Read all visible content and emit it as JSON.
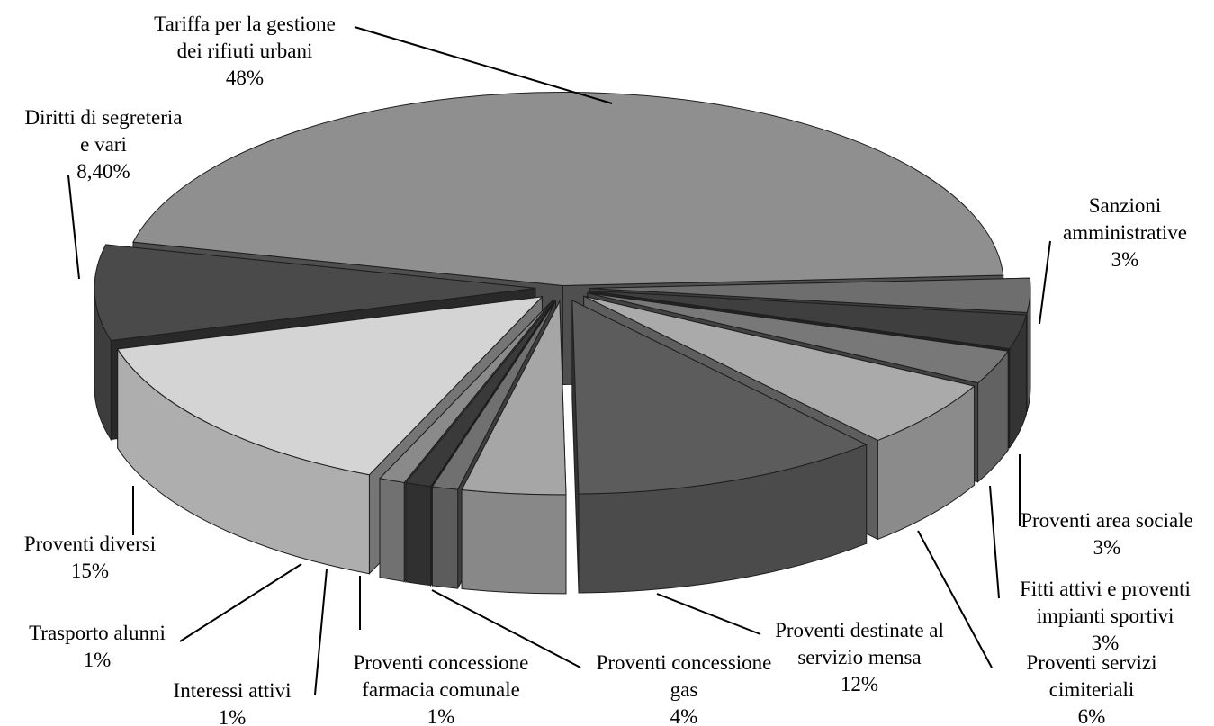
{
  "chart_data": {
    "type": "pie",
    "title": "",
    "variant": "3d-exploded",
    "slices": [
      {
        "label_lines": [
          "Tariffa per la gestione",
          "dei rifiuti urbani"
        ],
        "value_label": "48%",
        "value": 48,
        "color": "#8f8f8f"
      },
      {
        "label_lines": [
          "Sanzioni",
          "amministrative"
        ],
        "value_label": "3%",
        "value": 3,
        "color": "#6e6e6e"
      },
      {
        "label_lines": [
          "Proventi area sociale"
        ],
        "value_label": "3%",
        "value": 3,
        "color": "#3f3f3f"
      },
      {
        "label_lines": [
          "Fitti attivi e proventi",
          "impianti sportivi"
        ],
        "value_label": "3%",
        "value": 3,
        "color": "#787878"
      },
      {
        "label_lines": [
          "Proventi servizi",
          "cimiteriali"
        ],
        "value_label": "6%",
        "value": 6,
        "color": "#aaaaaa"
      },
      {
        "label_lines": [
          "Proventi destinate al",
          "servizio mensa"
        ],
        "value_label": "12%",
        "value": 12,
        "color": "#5c5c5c"
      },
      {
        "label_lines": [
          "Proventi concessione",
          "gas"
        ],
        "value_label": "4%",
        "value": 4,
        "color": "#a6a6a6"
      },
      {
        "label_lines": [
          "Proventi concessione",
          "farmacia comunale"
        ],
        "value_label": "1%",
        "value": 1,
        "color": "#707070"
      },
      {
        "label_lines": [
          "Interessi attivi"
        ],
        "value_label": "1%",
        "value": 1,
        "color": "#3a3a3a"
      },
      {
        "label_lines": [
          "Trasporto alunni"
        ],
        "value_label": "1%",
        "value": 1,
        "color": "#8a8a8a"
      },
      {
        "label_lines": [
          "Proventi diversi"
        ],
        "value_label": "15%",
        "value": 15,
        "color": "#d4d4d4"
      },
      {
        "label_lines": [
          "Diritti di segreteria",
          "e vari"
        ],
        "value_label": "8,40%",
        "value": 8.4,
        "color": "#4a4a4a"
      }
    ]
  }
}
